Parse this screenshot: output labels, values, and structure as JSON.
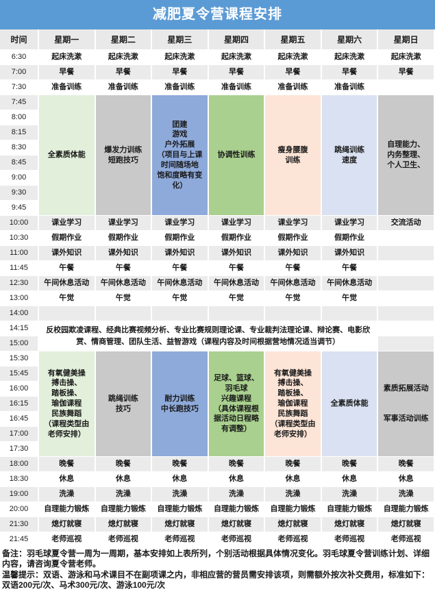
{
  "title": "减肥夏令营课程安排",
  "colors": {
    "title_bar": "#5B9BD5",
    "header_bg": "#E9E9E9",
    "stripe": "#EBEBEB",
    "mon": "#E2EFDA",
    "tue": "#C9C9C9",
    "wed": "#8EAADB",
    "thu": "#A9D08E",
    "fri": "#FCE4D6",
    "sat": "#D9E1F2",
    "sun": "#C9C9C9",
    "special": "#FFFFFF"
  },
  "table": {
    "header": [
      "时间",
      "星期一",
      "星期二",
      "星期三",
      "星期四",
      "星期五",
      "星期六",
      "星期日"
    ],
    "rows": [
      {
        "time": "6:30",
        "cells": [
          {
            "t": "起床洗漱"
          },
          {
            "t": "起床洗漱"
          },
          {
            "t": "起床洗漱"
          },
          {
            "t": "起床洗漱"
          },
          {
            "t": "起床洗漱"
          },
          {
            "t": "起床洗漱"
          },
          {
            "t": "起床洗漱"
          }
        ]
      },
      {
        "time": "7:00",
        "cells": [
          {
            "t": "早餐"
          },
          {
            "t": "早餐"
          },
          {
            "t": "早餐"
          },
          {
            "t": "早餐"
          },
          {
            "t": "早餐"
          },
          {
            "t": "早餐"
          },
          {
            "t": "早餐"
          }
        ]
      },
      {
        "time": "7:30",
        "cells": [
          {
            "t": "准备训练"
          },
          {
            "t": "准备训练"
          },
          {
            "t": "准备训练"
          },
          {
            "t": "准备训练"
          },
          {
            "t": "准备训练"
          },
          {
            "t": "准备训练"
          },
          {
            "t": ""
          }
        ]
      },
      {
        "time": "7:45",
        "cells": [
          {
            "t": "全素质体能",
            "rs": 8,
            "bg": "mon"
          },
          {
            "t": "爆发力训练\n短跑技巧",
            "rs": 8,
            "bg": "tue"
          },
          {
            "t": "团建\n游戏\n户外拓展\n（项目与上课\n时间随场地\n饱和度略有变\n化）",
            "rs": 8,
            "bg": "wed"
          },
          {
            "t": "协调性训练",
            "rs": 8,
            "bg": "thu"
          },
          {
            "t": "瘦身腰腹\n训练",
            "rs": 8,
            "bg": "fri"
          },
          {
            "t": "跳绳训练\n速度",
            "rs": 8,
            "bg": "sat"
          },
          {
            "t": "自理能力、\n内务整理、\n个人卫生、",
            "rs": 8,
            "bg": "sun"
          }
        ]
      },
      {
        "time": "8:00",
        "cells": []
      },
      {
        "time": "8:15",
        "cells": []
      },
      {
        "time": "8:30",
        "cells": []
      },
      {
        "time": "8:45",
        "cells": []
      },
      {
        "time": "9:00",
        "cells": []
      },
      {
        "time": "9:30",
        "cells": []
      },
      {
        "time": "9:45",
        "cells": []
      },
      {
        "time": "10:00",
        "cells": [
          {
            "t": "课业学习"
          },
          {
            "t": "课业学习"
          },
          {
            "t": "课业学习"
          },
          {
            "t": "课业学习"
          },
          {
            "t": "课业学习"
          },
          {
            "t": "课业学习"
          },
          {
            "t": "交流活动"
          }
        ]
      },
      {
        "time": "10:30",
        "cells": [
          {
            "t": "假期作业"
          },
          {
            "t": "假期作业"
          },
          {
            "t": "假期作业"
          },
          {
            "t": "假期作业"
          },
          {
            "t": "假期作业"
          },
          {
            "t": "假期作业"
          },
          {
            "t": ""
          }
        ]
      },
      {
        "time": "11:00",
        "cells": [
          {
            "t": "课外知识"
          },
          {
            "t": "课外知识"
          },
          {
            "t": "课外知识"
          },
          {
            "t": "课外知识"
          },
          {
            "t": "课外知识"
          },
          {
            "t": "课外知识"
          },
          {
            "t": ""
          }
        ]
      },
      {
        "time": "11:45",
        "cells": [
          {
            "t": "午餐"
          },
          {
            "t": "午餐"
          },
          {
            "t": "午餐"
          },
          {
            "t": "午餐"
          },
          {
            "t": "午餐"
          },
          {
            "t": "午餐"
          },
          {
            "t": ""
          }
        ]
      },
      {
        "time": "12:30",
        "cells": [
          {
            "t": "午间休息活动"
          },
          {
            "t": "午间休息活动"
          },
          {
            "t": "午间休息活动"
          },
          {
            "t": "午间休息活动"
          },
          {
            "t": "午间休息活动"
          },
          {
            "t": "午间休息活动"
          },
          {
            "t": ""
          }
        ]
      },
      {
        "time": "13:00",
        "cells": [
          {
            "t": "午觉"
          },
          {
            "t": "午觉"
          },
          {
            "t": "午觉"
          },
          {
            "t": "午觉"
          },
          {
            "t": "午觉"
          },
          {
            "t": "午觉"
          },
          {
            "t": ""
          }
        ]
      },
      {
        "time": "14:00",
        "cells": [
          {
            "t": ""
          },
          {
            "t": ""
          },
          {
            "t": ""
          },
          {
            "t": ""
          },
          {
            "t": ""
          },
          {
            "t": ""
          },
          {
            "t": ""
          }
        ]
      },
      {
        "time": "14:15",
        "cells": [
          {
            "t": "反校园欺凌课程、经典比赛视频分析、专业比赛规则理论课、专业裁判法理论课、辩论赛、电影欣赏、情商管理、团队生活、益智游戏（课程内容及时间根据营地情况适当调节）",
            "cs": 6,
            "rs": 2,
            "bg": "special",
            "cls": "special-cell"
          },
          {
            "t": ""
          }
        ]
      },
      {
        "time": "15:00",
        "cells": [
          {
            "t": ""
          }
        ]
      },
      {
        "time": "15:30",
        "cells": [
          {
            "t": "有氧健美操\n搏击操、\n踏板操、\n瑜伽课程\n民族舞蹈\n（课程类型由\n老师安排）",
            "rs": 7,
            "bg": "mon"
          },
          {
            "t": "跳绳训练\n技巧",
            "rs": 7,
            "bg": "tue"
          },
          {
            "t": "耐力训练\n中长跑技巧",
            "rs": 7,
            "bg": "wed"
          },
          {
            "t": "足球、篮球、\n羽毛球\n兴趣课程\n（具体课程根\n据活动日程略\n有调整）",
            "rs": 7,
            "bg": "thu"
          },
          {
            "t": "有氧健美操\n搏击操、\n踏板操、\n瑜伽课程\n民族舞蹈\n（课程类型由\n老师安排）",
            "rs": 7,
            "bg": "fri"
          },
          {
            "t": "全素质体能",
            "rs": 7,
            "bg": "sat"
          },
          {
            "t": "素质拓展活动\n\n\n军事活动训练",
            "rs": 7,
            "bg": "sun"
          }
        ]
      },
      {
        "time": "15:45",
        "cells": []
      },
      {
        "time": "16:00",
        "cells": []
      },
      {
        "time": "16:15",
        "cells": []
      },
      {
        "time": "16:45",
        "cells": []
      },
      {
        "time": "17:00",
        "cells": []
      },
      {
        "time": "17:30",
        "cells": []
      },
      {
        "time": "18:00",
        "cells": [
          {
            "t": "晚餐"
          },
          {
            "t": "晚餐"
          },
          {
            "t": "晚餐"
          },
          {
            "t": "晚餐"
          },
          {
            "t": "晚餐"
          },
          {
            "t": "晚餐"
          },
          {
            "t": "晚餐"
          }
        ]
      },
      {
        "time": "18:30",
        "cells": [
          {
            "t": "休息"
          },
          {
            "t": "休息"
          },
          {
            "t": "休息"
          },
          {
            "t": "休息"
          },
          {
            "t": "休息"
          },
          {
            "t": "休息"
          },
          {
            "t": "休息"
          }
        ]
      },
      {
        "time": "19:00",
        "cells": [
          {
            "t": "洗澡"
          },
          {
            "t": "洗澡"
          },
          {
            "t": "洗澡"
          },
          {
            "t": "洗澡"
          },
          {
            "t": "洗澡"
          },
          {
            "t": "洗澡"
          },
          {
            "t": "洗澡"
          }
        ]
      },
      {
        "time": "20:00",
        "cells": [
          {
            "t": "自理能力锻炼"
          },
          {
            "t": "自理能力锻炼"
          },
          {
            "t": "自理能力锻炼"
          },
          {
            "t": "自理能力锻炼"
          },
          {
            "t": "自理能力锻炼"
          },
          {
            "t": "自理能力锻炼"
          },
          {
            "t": "自理能力锻炼"
          }
        ]
      },
      {
        "time": "21:30",
        "cells": [
          {
            "t": "熄灯就寝"
          },
          {
            "t": "熄灯就寝"
          },
          {
            "t": "熄灯就寝"
          },
          {
            "t": "熄灯就寝"
          },
          {
            "t": "熄灯就寝"
          },
          {
            "t": "熄灯就寝"
          },
          {
            "t": "熄灯就寝"
          }
        ]
      },
      {
        "time": "21:45",
        "cells": [
          {
            "t": "老师巡视"
          },
          {
            "t": "老师巡视"
          },
          {
            "t": "老师巡视"
          },
          {
            "t": "老师巡视"
          },
          {
            "t": "老师巡视"
          },
          {
            "t": "老师巡视"
          },
          {
            "t": "老师巡视"
          }
        ]
      }
    ]
  },
  "notes": {
    "note": "备注：羽毛球夏令营一周为一周期，基本安排如上表所列，个别活动根据具体情况变化。羽毛球夏令营训练计划、详细内容，请咨询夏令营老师。",
    "tip": "温馨提示：双语、游泳和马术课目不在副项课之内，非相应营的营员需安排该项，则需额外按次补交费用，标准如下：双语200元/次、马术300元/次、游泳100元/次"
  }
}
